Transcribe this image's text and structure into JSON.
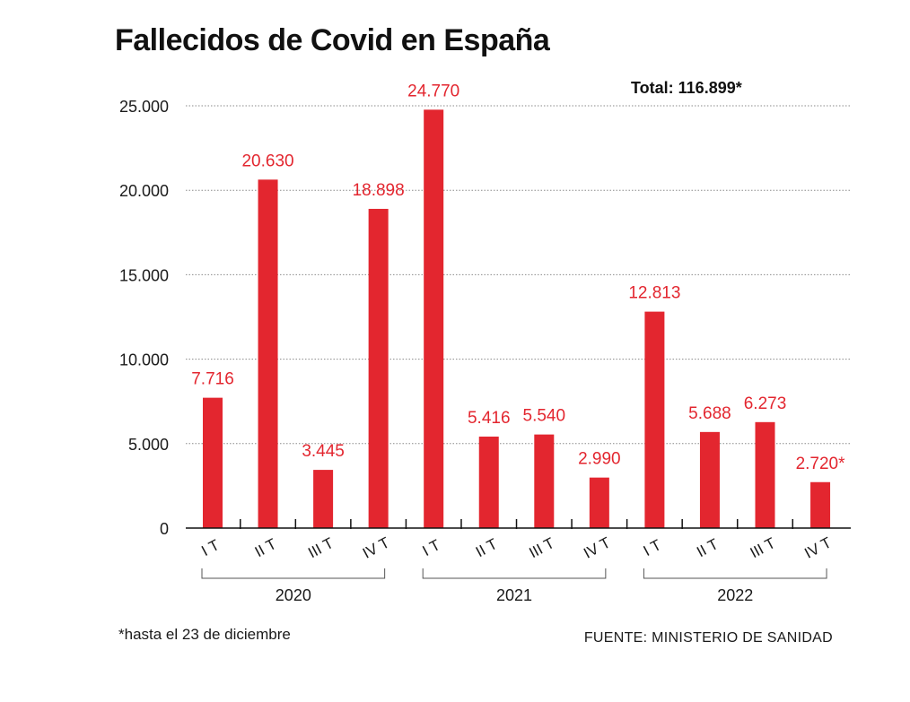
{
  "chart_data": {
    "type": "bar",
    "title": "Fallecidos de Covid en España",
    "total_label": "Total: 116.899*",
    "categories": [
      "I T",
      "II T",
      "III T",
      "IV T",
      "I T",
      "II T",
      "III T",
      "IV T",
      "I T",
      "II T",
      "III T",
      "IV T"
    ],
    "groups": [
      {
        "label": "2020",
        "categories": [
          "I T",
          "II T",
          "III T",
          "IV T"
        ]
      },
      {
        "label": "2021",
        "categories": [
          "I T",
          "II T",
          "III T",
          "IV T"
        ]
      },
      {
        "label": "2022",
        "categories": [
          "I T",
          "II T",
          "III T",
          "IV T"
        ]
      }
    ],
    "values": [
      7716,
      20630,
      3445,
      18898,
      24770,
      5416,
      5540,
      2990,
      12813,
      5688,
      6273,
      2720
    ],
    "value_labels": [
      "7.716",
      "20.630",
      "3.445",
      "18.898",
      "24.770",
      "5.416",
      "5.540",
      "2.990",
      "12.813",
      "5.688",
      "6.273",
      "2.720*"
    ],
    "ylim": [
      0,
      25000
    ],
    "yticks": [
      0,
      5000,
      10000,
      15000,
      20000,
      25000
    ],
    "ytick_labels": [
      "0",
      "5.000",
      "10.000",
      "15.000",
      "20.000",
      "25.000"
    ],
    "grid": true,
    "bar_color": "#e3262f",
    "footnote": "*hasta el 23 de diciembre",
    "source": "FUENTE: MINISTERIO DE SANIDAD"
  }
}
